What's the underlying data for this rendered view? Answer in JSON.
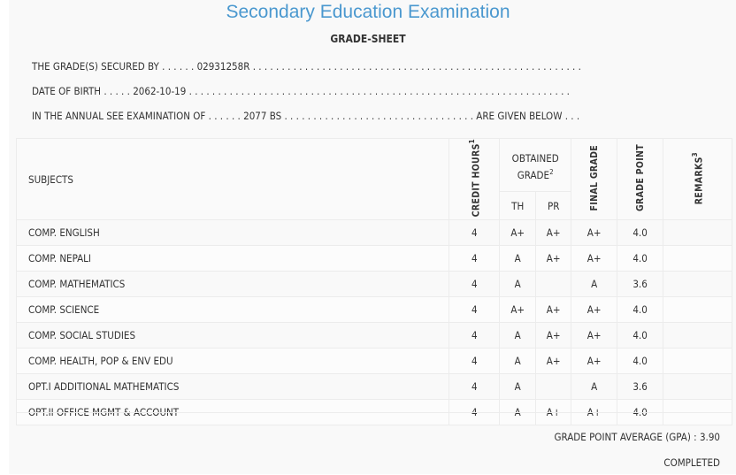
{
  "header": {
    "title": "Secondary Education Examination",
    "subtitle": "GRADE-SHEET"
  },
  "info": {
    "secured_by_label": "THE GRADE(S) SECURED BY . . . . . .",
    "symbol_no": "02931258R",
    "secured_by_tail": ". . . . . . . . . . . . . . . . . . . . . . . . . . . . . . . . . . . . . . . . . . . . . . . . . . . . . . . . .",
    "dob_label": "DATE OF BIRTH . . . . .",
    "dob": "2062-10-19",
    "dob_tail": ". . . . . . . . . . . . . . . . . . . . . . . . . . . . . . . . . . . . . . . . . . . . . . . . . . . . . . . . . . . . . . . . . .",
    "exam_label": "IN THE ANNUAL SEE EXAMINATION OF . . . . . .",
    "exam_year": "2077 BS",
    "exam_tail": ". . . . . . . . . . . . . . . . . . . . . . . . . . . . . . . . . ARE GIVEN BELOW . . ."
  },
  "table": {
    "headers": {
      "subjects": "SUBJECTS",
      "credit_hours": "CREDIT HOURS",
      "credit_hours_sup": "1",
      "obtained_grade": "OBTAINED GRADE",
      "obtained_grade_sup": "2",
      "th": "TH",
      "pr": "PR",
      "final_grade": "FINAL GRADE",
      "grade_point": "GRADE POINT",
      "remarks": "REMARKS",
      "remarks_sup": "3"
    },
    "rows": [
      {
        "subject": "COMP. ENGLISH",
        "credit": "4",
        "th": "A+",
        "pr": "A+",
        "final": "A+",
        "gp": "4.0",
        "remarks": ""
      },
      {
        "subject": "COMP. NEPALI",
        "credit": "4",
        "th": "A",
        "pr": "A+",
        "final": "A+",
        "gp": "4.0",
        "remarks": ""
      },
      {
        "subject": "COMP. MATHEMATICS",
        "credit": "4",
        "th": "A",
        "pr": "",
        "final": "A",
        "gp": "3.6",
        "remarks": ""
      },
      {
        "subject": "COMP. SCIENCE",
        "credit": "4",
        "th": "A+",
        "pr": "A+",
        "final": "A+",
        "gp": "4.0",
        "remarks": ""
      },
      {
        "subject": "COMP. SOCIAL STUDIES",
        "credit": "4",
        "th": "A",
        "pr": "A+",
        "final": "A+",
        "gp": "4.0",
        "remarks": ""
      },
      {
        "subject": "COMP. HEALTH, POP & ENV EDU",
        "credit": "4",
        "th": "A",
        "pr": "A+",
        "final": "A+",
        "gp": "4.0",
        "remarks": ""
      },
      {
        "subject": "OPT.I ADDITIONAL MATHEMATICS",
        "credit": "4",
        "th": "A",
        "pr": "",
        "final": "A",
        "gp": "3.6",
        "remarks": ""
      },
      {
        "subject": "OPT.II OFFICE MGMT & ACCOUNT",
        "credit": "4",
        "th": "A",
        "pr": "A+",
        "final": "A+",
        "gp": "4.0",
        "remarks": ""
      }
    ]
  },
  "footer": {
    "gpa_label": "GRADE POINT AVERAGE (GPA) :",
    "gpa_value": "3.90",
    "status": "COMPLETED"
  },
  "colors": {
    "title": "#4a98cf",
    "background": "#f9f9f9",
    "border": "#ececec"
  }
}
